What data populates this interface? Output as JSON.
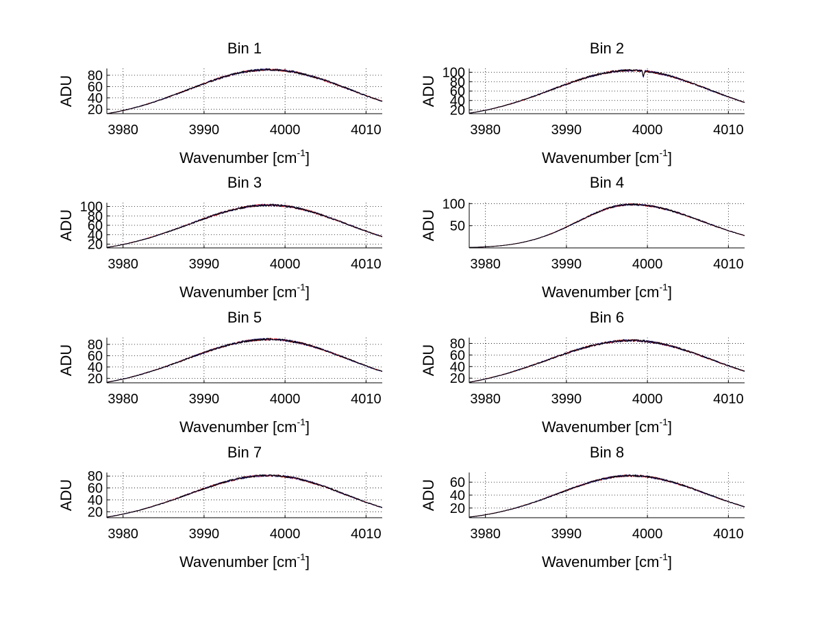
{
  "figure_title": "",
  "colors": {
    "series": [
      "#ff0000",
      "#1a1a8c",
      "#000000"
    ],
    "grid": "#000000",
    "background": "#ffffff"
  },
  "chart_data": [
    {
      "type": "line",
      "title": "Bin 1",
      "xlabel": "Wavenumber",
      "xlabel_unit_base": "[cm",
      "xlabel_unit_exp": "-1",
      "xlabel_unit_end": "]",
      "ylabel": "ADU",
      "xlim": [
        3978,
        4012
      ],
      "ylim": [
        12,
        92
      ],
      "xticks": [
        3980,
        3990,
        4000,
        4010
      ],
      "yticks": [
        20,
        40,
        60,
        80
      ],
      "profile": {
        "peak": 90,
        "center": 3998,
        "left_value": 12,
        "right_value": 34
      },
      "anomalies": []
    },
    {
      "type": "line",
      "title": "Bin 2",
      "xlabel": "Wavenumber",
      "xlabel_unit_base": "[cm",
      "xlabel_unit_exp": "-1",
      "xlabel_unit_end": "]",
      "ylabel": "ADU",
      "xlim": [
        3978,
        4012
      ],
      "ylim": [
        12,
        108
      ],
      "xticks": [
        3980,
        3990,
        4000,
        4010
      ],
      "yticks": [
        20,
        40,
        60,
        80,
        100
      ],
      "profile": {
        "peak": 104,
        "center": 3998,
        "left_value": 13,
        "right_value": 36
      },
      "anomalies": [
        {
          "x": 3999.5,
          "depth": 12
        }
      ]
    },
    {
      "type": "line",
      "title": "Bin 3",
      "xlabel": "Wavenumber",
      "xlabel_unit_base": "[cm",
      "xlabel_unit_exp": "-1",
      "xlabel_unit_end": "]",
      "ylabel": "ADU",
      "xlim": [
        3978,
        4012
      ],
      "ylim": [
        12,
        108
      ],
      "xticks": [
        3980,
        3990,
        4000,
        4010
      ],
      "yticks": [
        20,
        40,
        60,
        80,
        100
      ],
      "profile": {
        "peak": 103,
        "center": 3998,
        "left_value": 13,
        "right_value": 36
      },
      "anomalies": []
    },
    {
      "type": "line",
      "title": "Bin 4",
      "xlabel": "Wavenumber",
      "xlabel_unit_base": "[cm",
      "xlabel_unit_exp": "-1",
      "xlabel_unit_end": "]",
      "ylabel": "ADU",
      "xlim": [
        3978,
        4012
      ],
      "ylim": [
        0,
        102
      ],
      "xticks": [
        3980,
        3990,
        4000,
        4010
      ],
      "yticks": [
        50,
        100
      ],
      "profile": {
        "peak": 98,
        "center": 3998,
        "left_value": 1,
        "right_value": 28
      },
      "anomalies": []
    },
    {
      "type": "line",
      "title": "Bin 5",
      "xlabel": "Wavenumber",
      "xlabel_unit_base": "[cm",
      "xlabel_unit_exp": "-1",
      "xlabel_unit_end": "]",
      "ylabel": "ADU",
      "xlim": [
        3978,
        4012
      ],
      "ylim": [
        12,
        92
      ],
      "xticks": [
        3980,
        3990,
        4000,
        4010
      ],
      "yticks": [
        20,
        40,
        60,
        80
      ],
      "profile": {
        "peak": 89,
        "center": 3998,
        "left_value": 13,
        "right_value": 32
      },
      "anomalies": []
    },
    {
      "type": "line",
      "title": "Bin 6",
      "xlabel": "Wavenumber",
      "xlabel_unit_base": "[cm",
      "xlabel_unit_exp": "-1",
      "xlabel_unit_end": "]",
      "ylabel": "ADU",
      "xlim": [
        3978,
        4012
      ],
      "ylim": [
        12,
        90
      ],
      "xticks": [
        3980,
        3990,
        4000,
        4010
      ],
      "yticks": [
        20,
        40,
        60,
        80
      ],
      "profile": {
        "peak": 85,
        "center": 3998,
        "left_value": 13,
        "right_value": 32
      },
      "anomalies": []
    },
    {
      "type": "line",
      "title": "Bin 7",
      "xlabel": "Wavenumber",
      "xlabel_unit_base": "[cm",
      "xlabel_unit_exp": "-1",
      "xlabel_unit_end": "]",
      "ylabel": "ADU",
      "xlim": [
        3978,
        4012
      ],
      "ylim": [
        10,
        86
      ],
      "xticks": [
        3980,
        3990,
        4000,
        4010
      ],
      "yticks": [
        20,
        40,
        60,
        80
      ],
      "profile": {
        "peak": 81,
        "center": 3998,
        "left_value": 11,
        "right_value": 27
      },
      "anomalies": []
    },
    {
      "type": "line",
      "title": "Bin 8",
      "xlabel": "Wavenumber",
      "xlabel_unit_base": "[cm",
      "xlabel_unit_exp": "-1",
      "xlabel_unit_end": "]",
      "ylabel": "ADU",
      "xlim": [
        3978,
        4012
      ],
      "ylim": [
        5,
        75
      ],
      "xticks": [
        3980,
        3990,
        4000,
        4010
      ],
      "yticks": [
        20,
        40,
        60
      ],
      "profile": {
        "peak": 70,
        "center": 3998,
        "left_value": 6,
        "right_value": 22
      },
      "anomalies": []
    }
  ]
}
